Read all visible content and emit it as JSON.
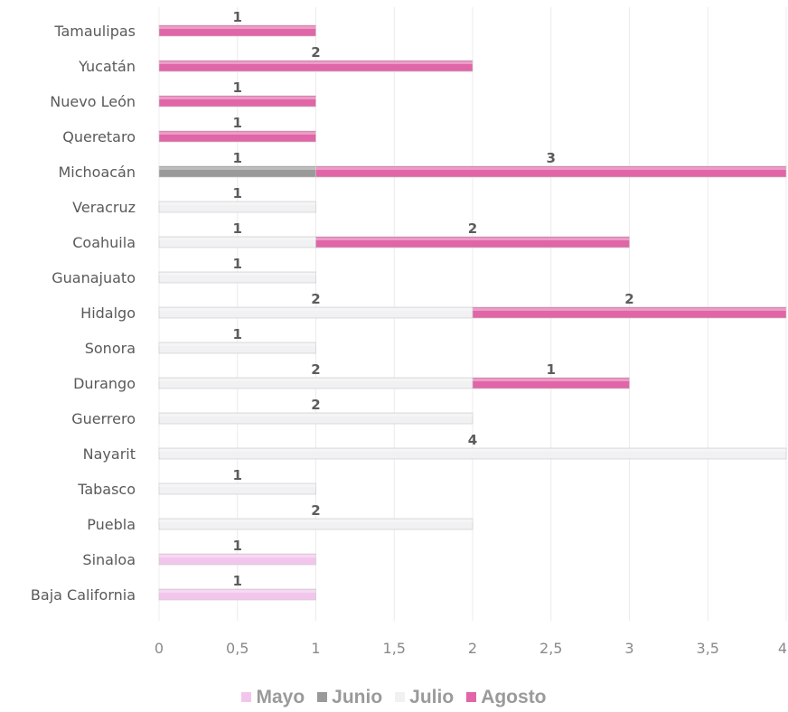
{
  "chart_data": {
    "type": "bar",
    "orientation": "horizontal",
    "stacked": true,
    "categories": [
      "Tamaulipas",
      "Yucatán",
      "Nuevo León",
      "Queretaro",
      "Michoacán",
      "Veracruz",
      "Coahuila",
      "Guanajuato",
      "Hidalgo",
      "Sonora",
      "Durango",
      "Guerrero",
      "Nayarit",
      "Tabasco",
      "Puebla",
      "Sinaloa",
      "Baja California"
    ],
    "series": [
      {
        "name": "Mayo",
        "color": "#f2c6ec",
        "values": [
          null,
          null,
          null,
          null,
          null,
          null,
          null,
          null,
          null,
          null,
          null,
          null,
          null,
          null,
          null,
          1,
          1
        ]
      },
      {
        "name": "Junio",
        "color": "#9a9a9a",
        "values": [
          null,
          null,
          null,
          null,
          1,
          null,
          null,
          null,
          null,
          null,
          null,
          null,
          null,
          null,
          null,
          null,
          null
        ]
      },
      {
        "name": "Julio",
        "color": "#f1f0f2",
        "values": [
          null,
          null,
          null,
          null,
          null,
          1,
          1,
          1,
          2,
          1,
          2,
          2,
          4,
          1,
          2,
          null,
          null
        ]
      },
      {
        "name": "Agosto",
        "color": "#e066a8",
        "values": [
          1,
          2,
          1,
          1,
          3,
          null,
          2,
          null,
          2,
          null,
          1,
          null,
          null,
          null,
          null,
          null,
          null
        ]
      }
    ],
    "xlim": [
      0,
      4
    ],
    "x_ticks": [
      "0",
      "0,5",
      "1",
      "1,5",
      "2",
      "2,5",
      "3",
      "3,5",
      "4"
    ],
    "grid": true,
    "legend_position": "bottom",
    "data_labels": true
  }
}
